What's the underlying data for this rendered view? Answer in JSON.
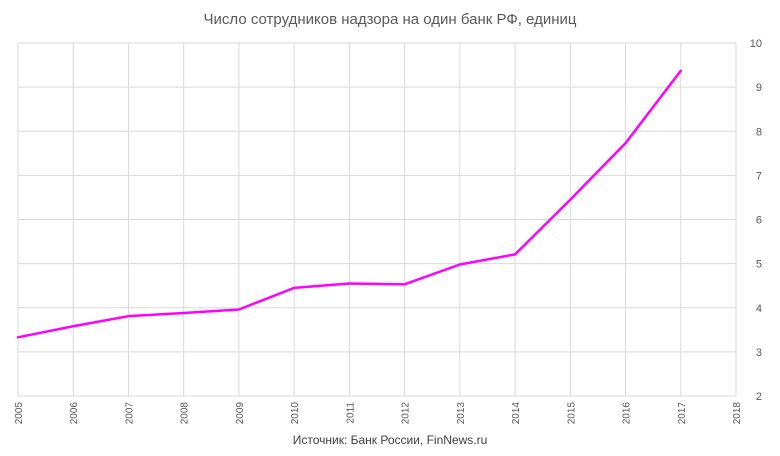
{
  "chart_data": {
    "type": "line",
    "title": "Число сотрудников надзора на один банк РФ, единиц",
    "source": "Источник: Банк России, FinNews.ru",
    "x": [
      2005,
      2006,
      2007,
      2008,
      2009,
      2010,
      2011,
      2012,
      2013,
      2014,
      2015,
      2016,
      2017
    ],
    "x_ticks": [
      "2005",
      "2006",
      "2007",
      "2008",
      "2009",
      "2010",
      "2011",
      "2012",
      "2013",
      "2014",
      "2015",
      "2016",
      "2017",
      "2018"
    ],
    "xlim": [
      2005,
      2018
    ],
    "ylim": [
      2,
      10
    ],
    "y_ticks": [
      "2",
      "3",
      "4",
      "5",
      "6",
      "7",
      "8",
      "9",
      "10"
    ],
    "y_axis_side": "right",
    "grid": true,
    "legend": "none",
    "series": [
      {
        "values": [
          3.33,
          3.58,
          3.81,
          3.88,
          3.96,
          4.45,
          4.55,
          4.53,
          4.98,
          5.21,
          6.45,
          7.73,
          9.37
        ],
        "color": "#ff00ff"
      }
    ]
  }
}
